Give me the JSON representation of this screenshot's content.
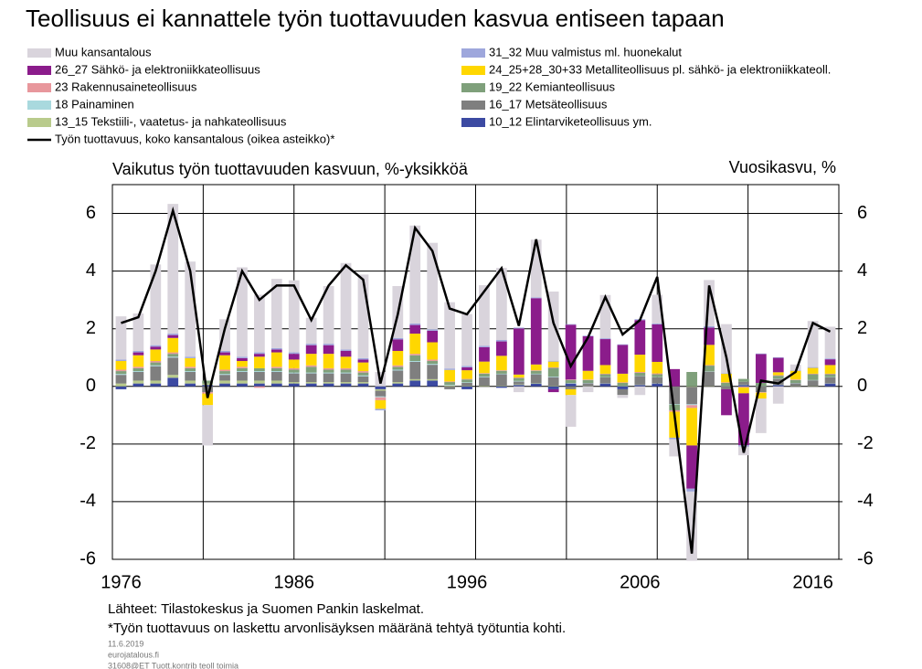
{
  "chart_data": {
    "type": "bar",
    "title": "Teollisuus ei kannattele työn tuottavuuden kasvua entiseen tapaan",
    "ylabel": "Vaikutus työn tuottavuuden kasvuun, %-yksikköä",
    "y2label": "Vuosikasvu, %",
    "source": "Lähteet: Tilastokeskus ja Suomen Pankin laskelmat.",
    "note": "*Työn tuottavuus on laskettu arvonlisäyksen määränä tehtyä työtuntia kohti.",
    "footer": [
      "11.6.2019",
      "eurojatalous.fi",
      "31608@ET Tuott.kontrib teoll toimia"
    ],
    "x": [
      1976,
      1977,
      1978,
      1979,
      1980,
      1981,
      1982,
      1983,
      1984,
      1985,
      1986,
      1987,
      1988,
      1989,
      1990,
      1991,
      1992,
      1993,
      1994,
      1995,
      1996,
      1997,
      1998,
      1999,
      2000,
      2001,
      2002,
      2003,
      2004,
      2005,
      2006,
      2007,
      2008,
      2009,
      2010,
      2011,
      2012,
      2013,
      2014,
      2015,
      2016,
      2017
    ],
    "xticks": [
      1976,
      1986,
      1996,
      2006,
      2016
    ],
    "ylim": [
      -6,
      7
    ],
    "yticks": [
      -6,
      -4,
      -2,
      0,
      2,
      4,
      6
    ],
    "y2lim": [
      -6,
      7
    ],
    "y2ticks": [
      -6,
      -4,
      -2,
      0,
      2,
      4,
      6
    ],
    "grid": true,
    "series": [
      {
        "name": "Muu kansantalous",
        "color": "#d9d4dc",
        "values": [
          1.5,
          1.3,
          2.8,
          4.5,
          3.3,
          -1.4,
          1.1,
          3.1,
          2.0,
          2.4,
          2.5,
          0.9,
          2.0,
          3.0,
          2.9,
          0.5,
          1.8,
          3.4,
          3.0,
          2.3,
          1.8,
          2.1,
          2.5,
          -0.2,
          2.0,
          2.4,
          -1.1,
          -0.2,
          1.5,
          -0.1,
          -0.3,
          1.0,
          -0.6,
          -2.4,
          1.6,
          1.7,
          -0.3,
          -1.2,
          -0.6,
          0.2,
          1.6,
          1.1
        ]
      },
      {
        "name": "31_32 Muu valmistus ml. huonekalut",
        "color": "#9ea7dc",
        "values": [
          0.05,
          0.05,
          0.05,
          0.05,
          0.05,
          0,
          0.05,
          0.05,
          0.05,
          0.05,
          0.05,
          0.05,
          0.05,
          0.05,
          0.05,
          -0.05,
          0.05,
          0.05,
          0.05,
          0.05,
          0.05,
          0.05,
          0.05,
          0.03,
          0.03,
          0.03,
          0.02,
          0.02,
          0.03,
          0.02,
          0.03,
          0.03,
          -0.05,
          -0.1,
          0.05,
          0.02,
          -0.05,
          0.02,
          0.02,
          0.02,
          0.03,
          0.03
        ]
      },
      {
        "name": "26_27 Sähkö- ja elektroniikkateollisuus",
        "color": "#8b1c8b",
        "values": [
          0,
          0.1,
          0.1,
          0.1,
          0,
          0,
          0.1,
          0.1,
          0.1,
          0.1,
          0.2,
          0.3,
          0.3,
          0.2,
          0.1,
          0,
          0.4,
          0.3,
          0.4,
          0,
          0.1,
          0.5,
          0.5,
          1.6,
          2.3,
          -0.1,
          1.9,
          1.2,
          0.9,
          1.0,
          1.2,
          1.3,
          0.6,
          -1.5,
          0.6,
          -0.9,
          -1.8,
          1.0,
          0.5,
          0,
          0,
          0.2
        ]
      },
      {
        "name": "24_25+28_30+33 Metalliteollisuus pl. sähkö- ja elektroniikkateoll.",
        "color": "#ffd700",
        "values": [
          0.3,
          0.4,
          0.4,
          0.5,
          0.3,
          -0.4,
          0.5,
          0.2,
          0.4,
          0.5,
          0.3,
          0.4,
          0.5,
          0.4,
          0.3,
          -0.3,
          0.5,
          0.7,
          0.6,
          0.4,
          0.3,
          0.4,
          0.5,
          0.1,
          0.2,
          0.2,
          -0.2,
          0.3,
          0.3,
          0.3,
          0.6,
          0.4,
          -0.9,
          -1.3,
          0.7,
          0.3,
          -0.2,
          -0.2,
          0.1,
          0.3,
          0.2,
          0.3
        ]
      },
      {
        "name": "23 Rakennusaineteollisuus",
        "color": "#e8979c",
        "values": [
          0.05,
          0.05,
          0.05,
          0.05,
          0.05,
          -0.05,
          0.05,
          0.05,
          -0.05,
          0.05,
          0.05,
          0.05,
          0.05,
          0.05,
          0.05,
          -0.1,
          0.05,
          0.05,
          0.05,
          0.02,
          0.02,
          0.02,
          0.02,
          0.02,
          0.02,
          0.02,
          0.02,
          0.02,
          0.02,
          0.02,
          0.03,
          0.03,
          -0.05,
          -0.1,
          0.02,
          0.02,
          -0.03,
          -0.02,
          0.02,
          0.02,
          0.02,
          0.02
        ]
      },
      {
        "name": "19_22 Kemianteollisuus",
        "color": "#7fa07b",
        "values": [
          0.1,
          0.1,
          0.1,
          0.1,
          0.1,
          0.1,
          0.1,
          0.1,
          0.1,
          0.1,
          0.1,
          0.2,
          0.1,
          0.1,
          0.1,
          0,
          0.1,
          0.2,
          0.1,
          0.1,
          0.1,
          0.1,
          0.1,
          0.1,
          0.1,
          0.3,
          0.1,
          0.1,
          0.1,
          0.1,
          0.1,
          0.1,
          -0.2,
          0.5,
          0.2,
          0.1,
          0.1,
          0.1,
          0.1,
          0.1,
          0.2,
          0.1
        ]
      },
      {
        "name": "18 Painaminen",
        "color": "#a9d9de",
        "values": [
          0.03,
          0.03,
          0.03,
          0.03,
          0.03,
          0,
          0.03,
          0.03,
          0.03,
          0.03,
          0.03,
          0.03,
          0.03,
          0.03,
          0.03,
          -0.03,
          0.03,
          0.03,
          0.03,
          0.02,
          0.02,
          0.02,
          0.02,
          0.02,
          0.02,
          0.02,
          0.01,
          0.01,
          0.01,
          0.01,
          0.01,
          0.01,
          -0.02,
          -0.03,
          0.01,
          0.01,
          -0.01,
          0.01,
          0.01,
          0.01,
          0.01,
          0.01
        ]
      },
      {
        "name": "16_17 Metsäteollisuus",
        "color": "#7f7f7f",
        "values": [
          0.3,
          0.3,
          0.5,
          0.6,
          0.3,
          -0.2,
          0.2,
          0.3,
          0.3,
          0.3,
          0.3,
          0.3,
          0.3,
          0.3,
          0.2,
          -0.2,
          0.4,
          0.6,
          0.5,
          -0.1,
          0.1,
          0.3,
          0.4,
          0.1,
          0.3,
          0.3,
          -0.1,
          0.1,
          0.2,
          -0.2,
          0.3,
          0.2,
          -0.6,
          -0.6,
          0.5,
          -0.1,
          0.1,
          -0.2,
          0.2,
          0.1,
          0.2,
          0.2
        ]
      },
      {
        "name": "13_15 Tekstiili-, vaatetus- ja nahkateollisuus",
        "color": "#b9cb8c",
        "values": [
          0.1,
          0.1,
          0.1,
          0.1,
          0.1,
          0.05,
          0.1,
          0.1,
          0.1,
          0.1,
          0.05,
          0.05,
          0.05,
          0.05,
          0.05,
          -0.05,
          0.05,
          0.05,
          0.05,
          0.03,
          0.02,
          0.02,
          0.02,
          0.02,
          0.02,
          0.02,
          0.01,
          0.01,
          0.01,
          0.01,
          0.01,
          0.01,
          -0.01,
          -0.02,
          0.01,
          0.01,
          0.01,
          0.01,
          0.01,
          0.01,
          0.01,
          0.01
        ]
      },
      {
        "name": "10_12 Elintarviketeollisuus ym.",
        "color": "#3c4aa2",
        "values": [
          -0.1,
          0.1,
          0.1,
          0.3,
          0.1,
          0.05,
          0.1,
          0.1,
          0.1,
          0.1,
          0.1,
          0.1,
          0.1,
          0.1,
          0.1,
          -0.1,
          0.1,
          0.2,
          0.2,
          0,
          -0.1,
          0,
          -0.05,
          0.05,
          0.1,
          -0.1,
          0.1,
          0,
          0.1,
          -0.1,
          0.05,
          0.1,
          0,
          0,
          0,
          0,
          0.05,
          0,
          0.05,
          0,
          0,
          0.1
        ]
      },
      {
        "name": "Työn tuottavuus, koko kansantalous (oikea asteikko)*",
        "color": "#000000",
        "type": "line",
        "axis": "y2",
        "values": [
          2.2,
          2.4,
          4.0,
          6.1,
          4.0,
          -0.4,
          2.0,
          4.0,
          3.0,
          3.5,
          3.5,
          2.3,
          3.5,
          4.2,
          3.7,
          0.1,
          2.5,
          5.5,
          4.7,
          2.7,
          2.5,
          3.3,
          4.1,
          2.1,
          5.1,
          2.2,
          0.7,
          1.7,
          3.1,
          1.8,
          2.3,
          3.8,
          -1.0,
          -5.8,
          3.5,
          1.0,
          -2.3,
          0.2,
          0.1,
          0.5,
          2.2,
          1.9
        ]
      }
    ]
  }
}
